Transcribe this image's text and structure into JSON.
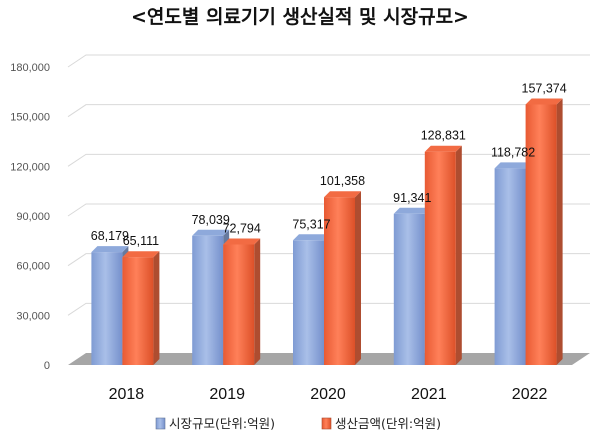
{
  "chart_data": {
    "type": "bar",
    "title": "<연도별 의료기기 생산실적 및 시장규모>",
    "categories": [
      "2018",
      "2019",
      "2020",
      "2021",
      "2022"
    ],
    "series": [
      {
        "name": "시장규모(단위:억원)",
        "values": [
          68179,
          78039,
          75317,
          91341,
          118782
        ],
        "labels": [
          "68,179",
          "78,039",
          "75,317",
          "91,341",
          "118,782"
        ],
        "color": "#8EA9DB"
      },
      {
        "name": "생산금액(단위:억원)",
        "values": [
          65111,
          72794,
          101358,
          128831,
          157374
        ],
        "labels": [
          "65,111",
          "72,794",
          "101,358",
          "128,831",
          "157,374"
        ],
        "color": "#F26B43"
      }
    ],
    "ylim": [
      0,
      180000
    ],
    "yticks": [
      0,
      30000,
      60000,
      90000,
      120000,
      150000,
      180000
    ],
    "ytick_labels": [
      "0",
      "30,000",
      "60,000",
      "90,000",
      "120,000",
      "150,000",
      "180,000"
    ],
    "grid": true,
    "legend_position": "bottom",
    "style": "3d-bar"
  }
}
